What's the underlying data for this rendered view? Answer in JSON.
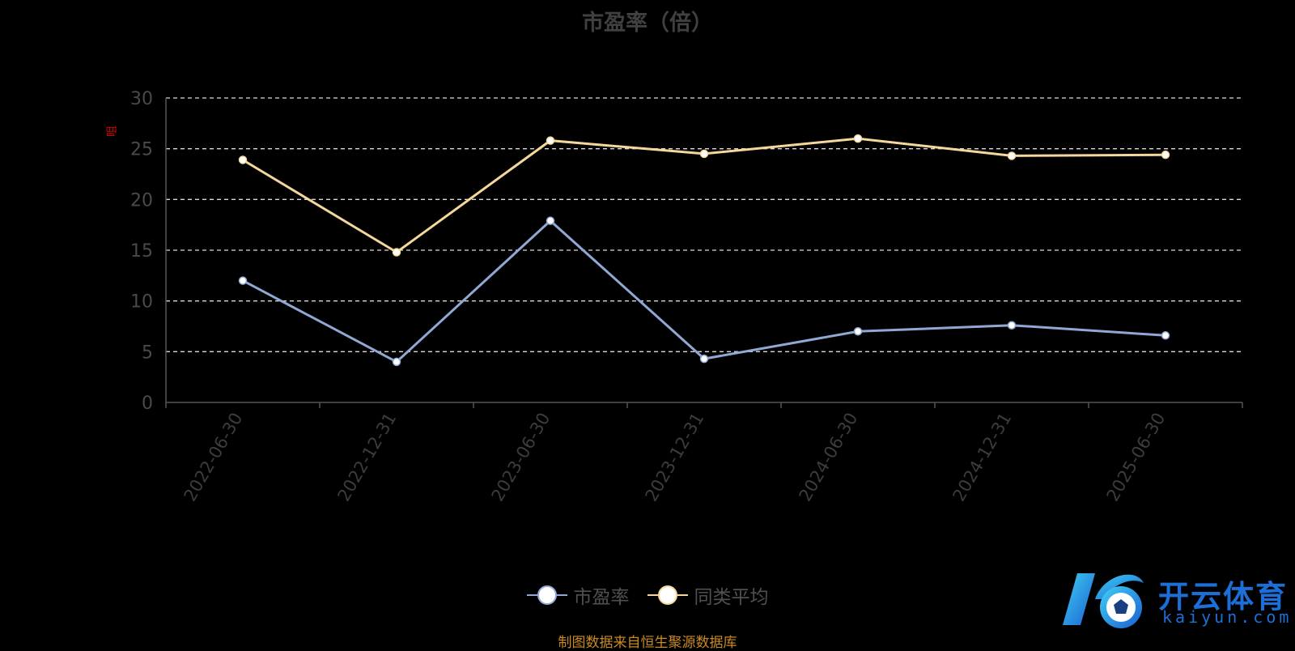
{
  "colors": {
    "pe": "#8fa8d4",
    "peer": "#f5d79a",
    "grid": "#d9d9d9",
    "axis": "#555555",
    "source": "#c98a1f",
    "brand": "#1c6fd6"
  },
  "chart_data": {
    "type": "line",
    "title": "市盈率（倍）",
    "categories": [
      "2022-06-30",
      "2022-12-31",
      "2023-06-30",
      "2023-12-31",
      "2024-06-30",
      "2024-12-31",
      "2025-06-30"
    ],
    "series": [
      {
        "name": "市盈率",
        "values": [
          12.0,
          4.0,
          17.9,
          4.3,
          7.0,
          7.6,
          6.6
        ]
      },
      {
        "name": "同类平均",
        "values": [
          23.9,
          14.8,
          25.8,
          24.5,
          26.0,
          24.3,
          24.4
        ]
      }
    ],
    "yticks": [
      0,
      5,
      10,
      15,
      20,
      25,
      30
    ],
    "ylim": [
      0,
      30
    ],
    "grid": true,
    "legend_position": "bottom",
    "y_marker_text": "咀"
  },
  "footer": {
    "source": "制图数据来自恒生聚源数据库"
  },
  "brand": {
    "logo_icon": "k-soccer-logo-icon",
    "name": "开云体育",
    "domain": "kaiyun.com"
  }
}
